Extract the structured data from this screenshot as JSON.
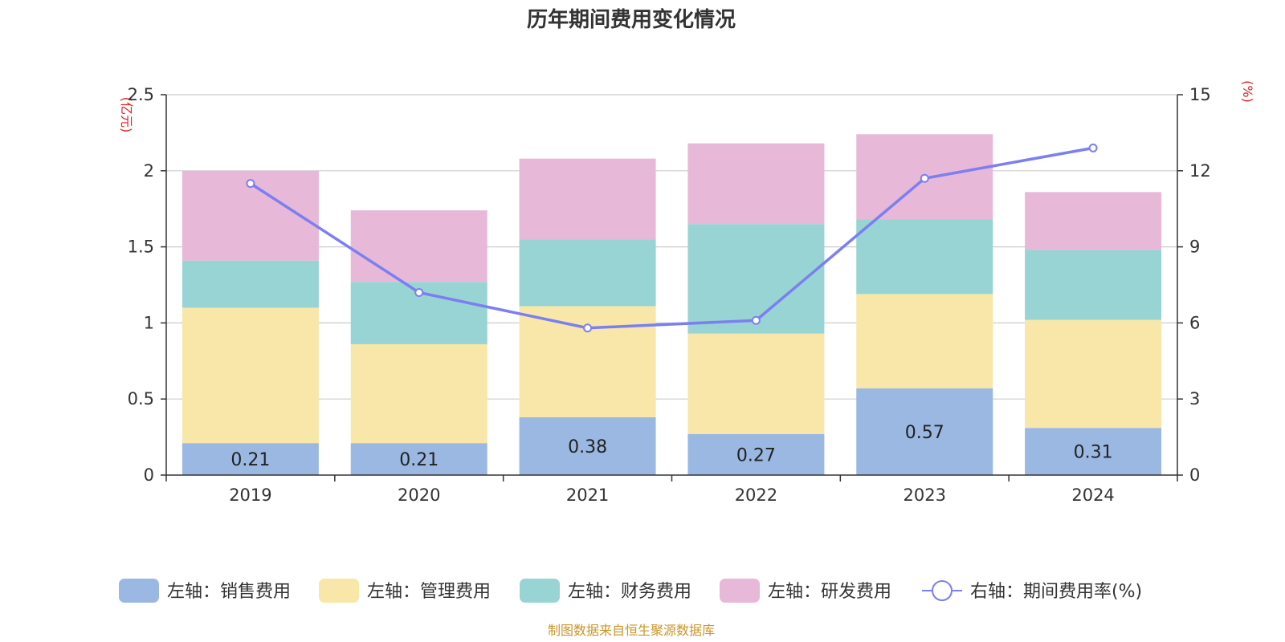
{
  "chart_data": {
    "type": "bar",
    "title": "历年期间费用变化情况",
    "categories": [
      "2019",
      "2020",
      "2021",
      "2022",
      "2023",
      "2024"
    ],
    "left_axis": {
      "unit": "(亿元)",
      "ylim": [
        0,
        2.5
      ],
      "ticks": [
        "0",
        "0.5",
        "1",
        "1.5",
        "2",
        "2.5"
      ]
    },
    "right_axis": {
      "unit": "(%)",
      "ylim": [
        0,
        15
      ],
      "ticks": [
        "0",
        "3",
        "6",
        "9",
        "12",
        "15"
      ]
    },
    "grid": true,
    "legend_position": "bottom",
    "series": [
      {
        "name": "左轴：销售费用",
        "type": "bar",
        "stack": "left",
        "color": "#9bb8e3",
        "values": [
          0.21,
          0.21,
          0.38,
          0.27,
          0.57,
          0.31
        ],
        "labels": [
          "0.21",
          "0.21",
          "0.38",
          "0.27",
          "0.57",
          "0.31"
        ]
      },
      {
        "name": "左轴：管理费用",
        "type": "bar",
        "stack": "left",
        "color": "#f8e7a8",
        "values": [
          0.89,
          0.65,
          0.73,
          0.66,
          0.62,
          0.71
        ]
      },
      {
        "name": "左轴：财务费用",
        "type": "bar",
        "stack": "left",
        "color": "#98d4d4",
        "values": [
          0.31,
          0.41,
          0.44,
          0.72,
          0.49,
          0.46
        ]
      },
      {
        "name": "左轴：研发费用",
        "type": "bar",
        "stack": "left",
        "color": "#e7b8d8",
        "values": [
          0.59,
          0.47,
          0.53,
          0.53,
          0.56,
          0.38
        ]
      },
      {
        "name": "右轴：期间费用率(%)",
        "type": "line",
        "axis": "right",
        "color": "#7b7ff0",
        "values": [
          11.5,
          7.2,
          5.8,
          6.1,
          11.7,
          12.9
        ]
      }
    ],
    "source": "制图数据来自恒生聚源数据库",
    "colors": {
      "unit": "#e02020",
      "source": "#c8962a",
      "axis": "#333333",
      "grid": "#cccccc"
    }
  }
}
